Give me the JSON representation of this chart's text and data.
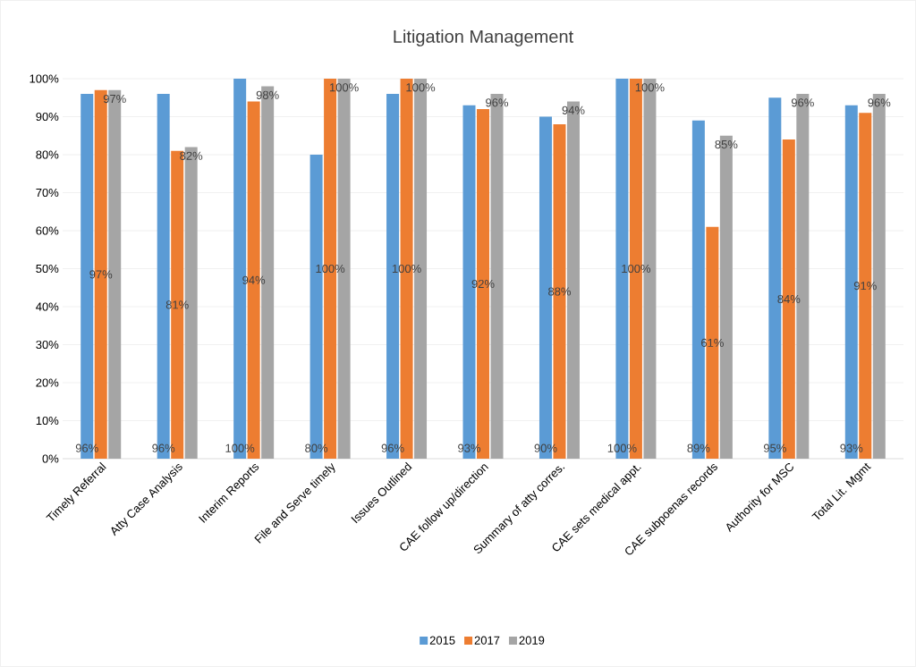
{
  "chart_data": {
    "type": "bar",
    "title": "Litigation Management",
    "categories": [
      "Timely Referral",
      "Atty Case Analysis",
      "Interim Reports",
      "File and Serve timely",
      "Issues Outlined",
      "CAE follow up/direction",
      "Summary of atty corres.",
      "CAE sets medical appt.",
      "CAE subpoenas records",
      "Authority for MSC",
      "Total Lit. Mgmt"
    ],
    "series": [
      {
        "name": "2015",
        "color": "#5b9bd5",
        "values": [
          96,
          96,
          100,
          80,
          96,
          93,
          90,
          100,
          89,
          95,
          93
        ],
        "value_labels": [
          "96%",
          "96%",
          "100%",
          "80%",
          "96%",
          "93%",
          "90%",
          "100%",
          "89%",
          "95%",
          "93%"
        ]
      },
      {
        "name": "2017",
        "color": "#ed7d31",
        "values": [
          97,
          81,
          94,
          100,
          100,
          92,
          88,
          100,
          61,
          84,
          91
        ],
        "value_labels": [
          "97%",
          "81%",
          "94%",
          "100%",
          "100%",
          "92%",
          "88%",
          "100%",
          "61%",
          "84%",
          "91%"
        ]
      },
      {
        "name": "2019",
        "color": "#a5a5a5",
        "values": [
          97,
          82,
          98,
          100,
          100,
          96,
          94,
          100,
          85,
          96,
          96
        ],
        "value_labels": [
          "97%",
          "82%",
          "98%",
          "100%",
          "100%",
          "96%",
          "94%",
          "100%",
          "85%",
          "96%",
          "96%"
        ]
      }
    ],
    "ylim": [
      0,
      100
    ],
    "yticks": [
      {
        "value": 0,
        "label": "0%"
      },
      {
        "value": 10,
        "label": "10%"
      },
      {
        "value": 20,
        "label": "20%"
      },
      {
        "value": 30,
        "label": "30%"
      },
      {
        "value": 40,
        "label": "40%"
      },
      {
        "value": 50,
        "label": "50%"
      },
      {
        "value": 60,
        "label": "60%"
      },
      {
        "value": 70,
        "label": "70%"
      },
      {
        "value": 80,
        "label": "80%"
      },
      {
        "value": 90,
        "label": "90%"
      },
      {
        "value": 100,
        "label": "100%"
      }
    ],
    "grid": "y",
    "legend": "bottom"
  }
}
